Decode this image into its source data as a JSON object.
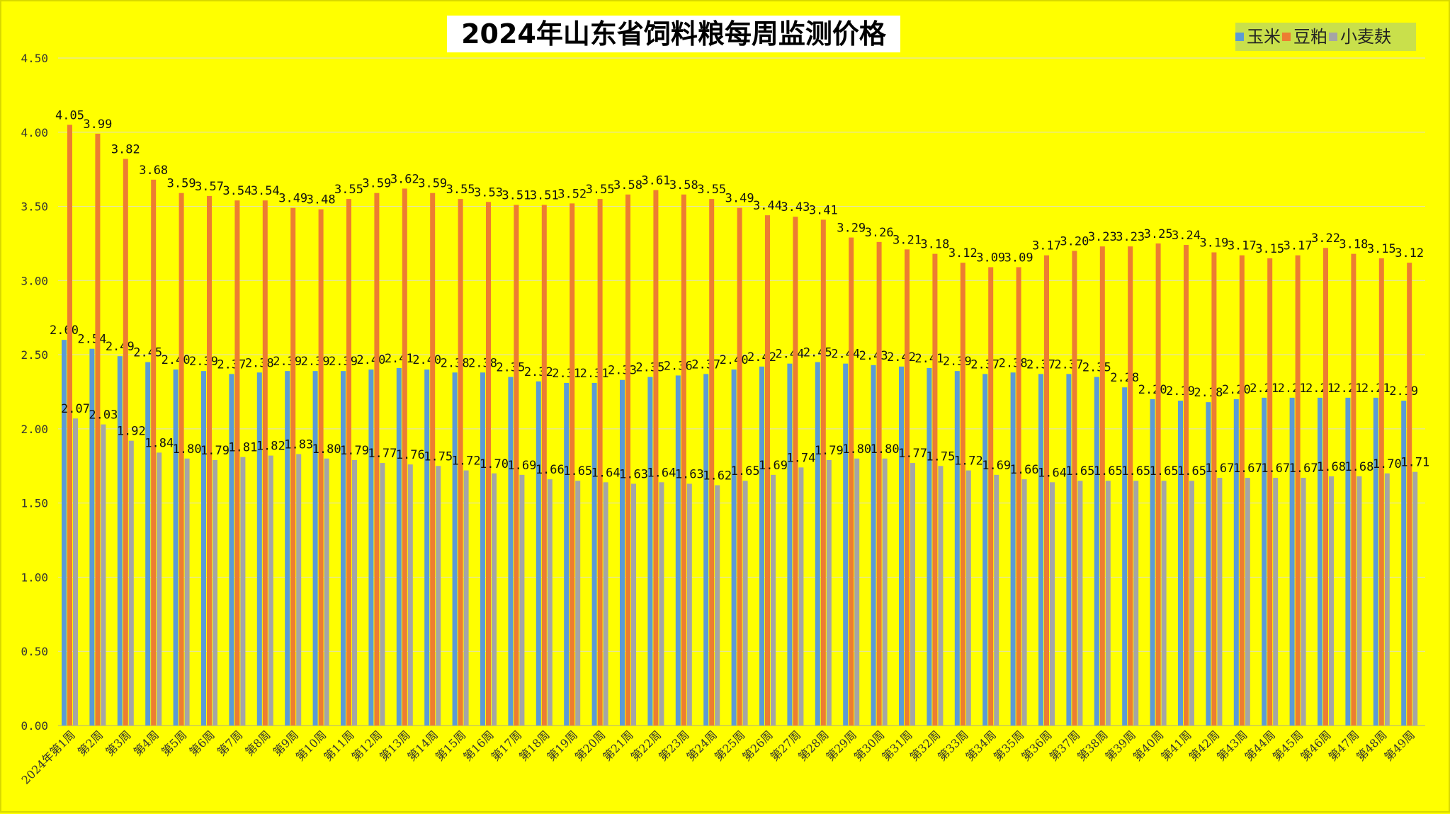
{
  "chart_data": {
    "type": "bar",
    "title": "2024年山东省饲料粮每周监测价格",
    "xlabel": "",
    "ylabel": "",
    "ylim": [
      0,
      4.5
    ],
    "y_ticks": [
      "0.00",
      "0.50",
      "1.00",
      "1.50",
      "2.00",
      "2.50",
      "3.00",
      "3.50",
      "4.00",
      "4.50"
    ],
    "grid": true,
    "legend_position": "top-right",
    "categories": [
      "2024年第1周",
      "第2周",
      "第3周",
      "第4周",
      "第5周",
      "第6周",
      "第7周",
      "第8周",
      "第9周",
      "第10周",
      "第11周",
      "第12周",
      "第13周",
      "第14周",
      "第15周",
      "第16周",
      "第17周",
      "第18周",
      "第19周",
      "第20周",
      "第21周",
      "第22周",
      "第23周",
      "第24周",
      "第25周",
      "第26周",
      "第27周",
      "第28周",
      "第29周",
      "第30周",
      "第31周",
      "第32周",
      "第33周",
      "第34周",
      "第35周",
      "第36周",
      "第37周",
      "第38周",
      "第39周",
      "第40周",
      "第41周",
      "第42周",
      "第43周",
      "第44周",
      "第45周",
      "第46周",
      "第47周",
      "第48周",
      "第49周"
    ],
    "series": [
      {
        "name": "玉米",
        "color": "#5B9BD5",
        "values": [
          2.6,
          2.54,
          2.49,
          2.45,
          2.4,
          2.39,
          2.37,
          2.38,
          2.39,
          2.39,
          2.39,
          2.4,
          2.41,
          2.4,
          2.38,
          2.38,
          2.35,
          2.32,
          2.31,
          2.31,
          2.33,
          2.35,
          2.36,
          2.37,
          2.4,
          2.42,
          2.44,
          2.45,
          2.44,
          2.43,
          2.42,
          2.41,
          2.39,
          2.37,
          2.38,
          2.37,
          2.37,
          2.35,
          2.28,
          2.2,
          2.19,
          2.18,
          2.2,
          2.21,
          2.21,
          2.21,
          2.21,
          2.21,
          2.19
        ]
      },
      {
        "name": "豆粕",
        "color": "#ED7D31",
        "values": [
          4.05,
          3.99,
          3.82,
          3.68,
          3.59,
          3.57,
          3.54,
          3.54,
          3.49,
          3.48,
          3.55,
          3.59,
          3.62,
          3.59,
          3.55,
          3.53,
          3.51,
          3.51,
          3.52,
          3.55,
          3.58,
          3.61,
          3.58,
          3.55,
          3.49,
          3.44,
          3.43,
          3.41,
          3.29,
          3.26,
          3.21,
          3.18,
          3.12,
          3.09,
          3.09,
          3.17,
          3.2,
          3.23,
          3.23,
          3.25,
          3.24,
          3.19,
          3.17,
          3.15,
          3.17,
          3.22,
          3.18,
          3.15,
          3.12
        ]
      },
      {
        "name": "小麦麸",
        "color": "#A5A5A5",
        "values": [
          2.07,
          2.03,
          1.92,
          1.84,
          1.8,
          1.79,
          1.81,
          1.82,
          1.83,
          1.8,
          1.79,
          1.77,
          1.76,
          1.75,
          1.72,
          1.7,
          1.69,
          1.66,
          1.65,
          1.64,
          1.63,
          1.64,
          1.63,
          1.62,
          1.65,
          1.69,
          1.74,
          1.79,
          1.8,
          1.8,
          1.77,
          1.75,
          1.72,
          1.69,
          1.66,
          1.64,
          1.65,
          1.65,
          1.65,
          1.65,
          1.65,
          1.67,
          1.67,
          1.67,
          1.67,
          1.68,
          1.68,
          1.7,
          1.71
        ]
      }
    ]
  }
}
